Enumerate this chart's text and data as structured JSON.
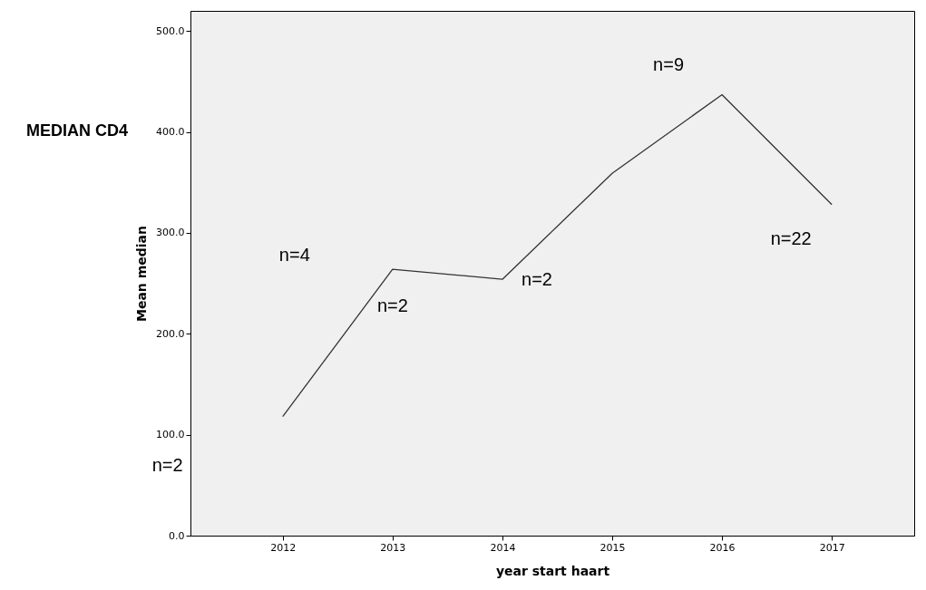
{
  "chart_data": {
    "type": "line",
    "title": "MEDIAN CD4",
    "xlabel": "year start haart",
    "ylabel": "Mean median",
    "x": [
      2012,
      2013,
      2014,
      2015,
      2016,
      2017
    ],
    "series": [
      {
        "color": "#333333",
        "values": [
          118,
          264,
          254,
          359,
          437,
          328
        ]
      }
    ],
    "xlim": [
      2011.16,
      2017.75
    ],
    "xticks": [
      2012,
      2013,
      2014,
      2015,
      2016,
      2017
    ],
    "ylim": [
      0,
      520
    ],
    "yticks": [
      {
        "value": 0,
        "label": "0.0"
      },
      {
        "value": 100,
        "label": "100.0"
      },
      {
        "value": 200,
        "label": "200.0"
      },
      {
        "value": 300,
        "label": "300.0"
      },
      {
        "value": 400,
        "label": "400.0"
      },
      {
        "value": 500,
        "label": "500.0"
      }
    ],
    "grid": false,
    "marker": "none",
    "line_style": "solid",
    "annotations": [
      "n=2",
      "n=4",
      "n=2",
      "n=2",
      "n=9",
      "n=22"
    ]
  }
}
